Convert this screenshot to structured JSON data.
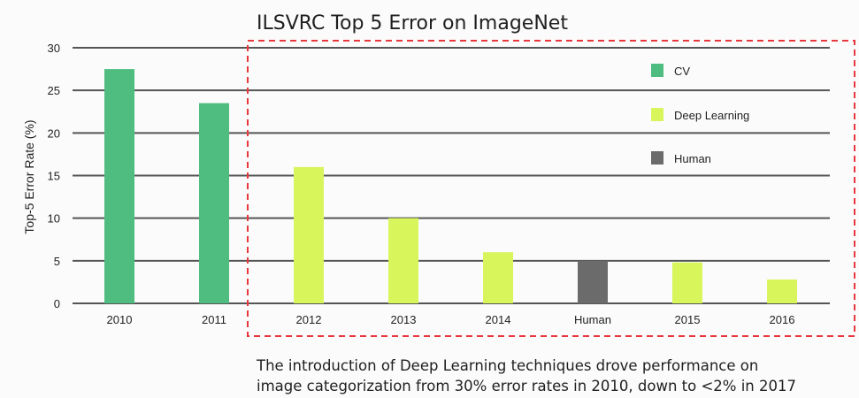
{
  "chart_data": {
    "type": "bar",
    "title": "ILSVRC Top 5 Error on ImageNet",
    "ylabel": "Top-5 Error Rate (%)",
    "xlabel": "",
    "ylim": [
      0,
      30
    ],
    "yticks": [
      "0",
      "5",
      "10",
      "15",
      "20",
      "25",
      "30"
    ],
    "grid": true,
    "legend_position": "top-right",
    "categories": [
      "2010",
      "2011",
      "2012",
      "2013",
      "2014",
      "Human",
      "2015",
      "2016"
    ],
    "values": [
      27.5,
      23.5,
      16.0,
      10.0,
      6.0,
      5.0,
      4.8,
      2.8
    ],
    "bar_groups": [
      "CV",
      "CV",
      "Deep Learning",
      "Deep Learning",
      "Deep Learning",
      "Human",
      "Deep Learning",
      "Deep Learning"
    ],
    "legend": [
      {
        "name": "CV",
        "color": "#4ebd7f"
      },
      {
        "name": "Deep Learning",
        "color": "#d8f55c"
      },
      {
        "name": "Human",
        "color": "#6b6b6b"
      }
    ],
    "highlight_box": {
      "color": "#e8383d",
      "style": "dashed",
      "covers_categories": [
        "2012",
        "2013",
        "2014",
        "Human",
        "2015",
        "2016"
      ]
    }
  },
  "caption": {
    "line1": "The introduction  of Deep Learning techniques drove performance on",
    "line2": "image categorization from 30% error rates in 2010, down to <2% in 2017"
  }
}
